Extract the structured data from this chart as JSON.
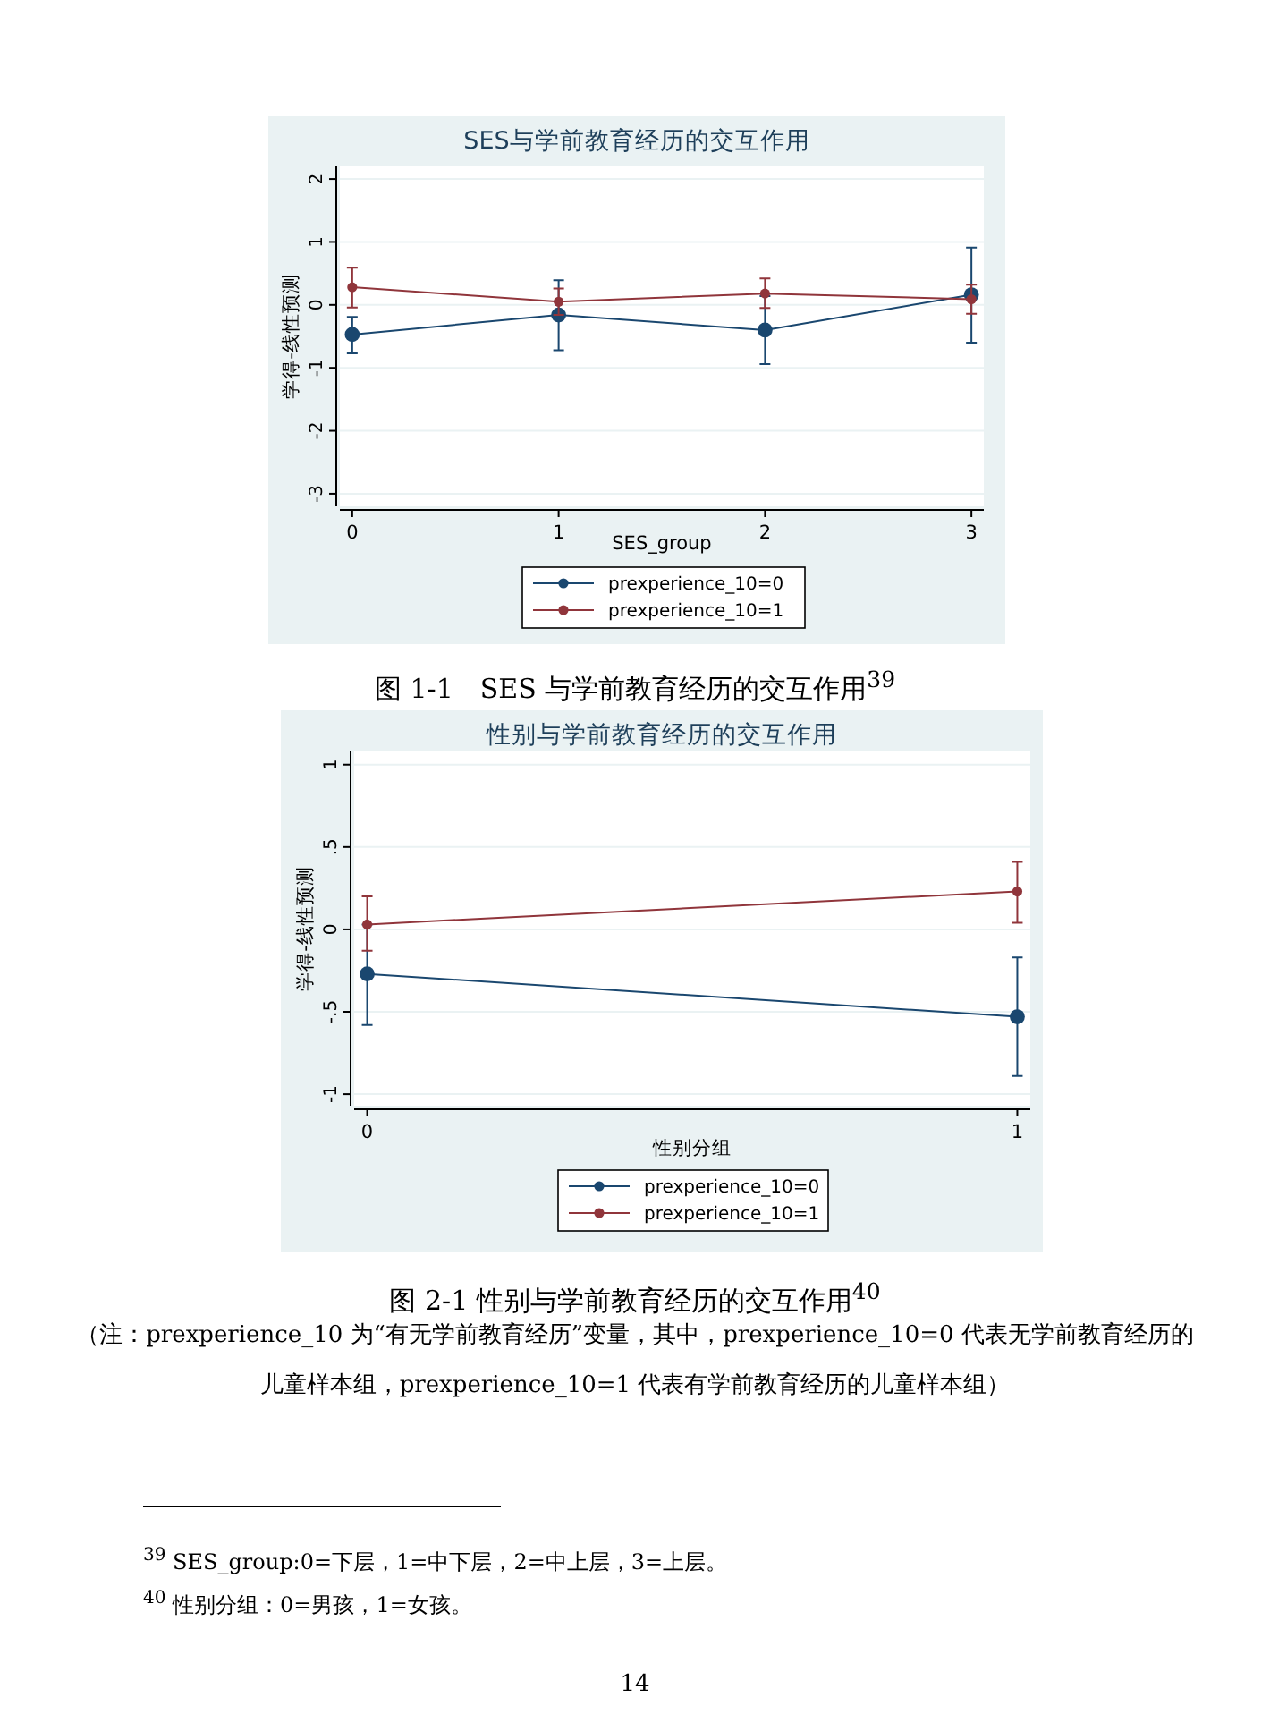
{
  "chart_data": [
    {
      "type": "line",
      "title": "SES与学前教育经历的交互作用",
      "xlabel": "SES_group",
      "ylabel": "学得-线性预测",
      "x": [
        0,
        1,
        2,
        3
      ],
      "xlim": [
        -0.06,
        3.06
      ],
      "xticks": [
        0,
        1,
        2,
        3
      ],
      "ylim": [
        -3.2,
        2.2
      ],
      "yticks": [
        2,
        1,
        0,
        -1,
        -2,
        -3
      ],
      "grid": "y",
      "legend": "bottom",
      "marker": "circle",
      "series": [
        {
          "name": "prexperience_10=0",
          "color": "#1a476f",
          "values": [
            -0.47,
            -0.16,
            -0.4,
            0.16
          ],
          "errors": [
            [
              -0.77,
              -0.19
            ],
            [
              -0.72,
              0.39
            ],
            [
              -0.94,
              0.14
            ],
            [
              -0.6,
              0.91
            ]
          ]
        },
        {
          "name": "prexperience_10=1",
          "color": "#90353b",
          "values": [
            0.28,
            0.05,
            0.18,
            0.09
          ],
          "errors": [
            [
              -0.04,
              0.59
            ],
            [
              -0.16,
              0.26
            ],
            [
              -0.05,
              0.42
            ],
            [
              -0.14,
              0.32
            ]
          ]
        }
      ],
      "annotations": [
        "图 1-1　SES 与学前教育经历的交互作用$^{39}$",
        "$^{39}$ SES_group:0=下层，1=中下层，2=中上层，3=上层。"
      ]
    },
    {
      "type": "line",
      "title": "性别与学前教育经历的交互作用",
      "xlabel": "性别分组",
      "ylabel": "学得-线性预测",
      "x": [
        0,
        1
      ],
      "xlim": [
        -0.02,
        1.02
      ],
      "xticks": [
        0,
        1
      ],
      "ylim": [
        -1.07,
        1.08
      ],
      "yticks": [
        1,
        {
          "value": 0.5,
          "label": ".5"
        },
        0,
        {
          "value": -0.5,
          "label": "-.5"
        },
        -1
      ],
      "grid": "y",
      "legend": "bottom",
      "marker": "circle",
      "series": [
        {
          "name": "prexperience_10=0",
          "color": "#1a476f",
          "values": [
            -0.27,
            -0.53
          ],
          "errors": [
            [
              -0.58,
              0.03
            ],
            [
              -0.89,
              -0.17
            ]
          ]
        },
        {
          "name": "prexperience_10=1",
          "color": "#90353b",
          "values": [
            0.03,
            0.23
          ],
          "errors": [
            [
              -0.13,
              0.2
            ],
            [
              0.04,
              0.41
            ]
          ]
        }
      ],
      "annotations": [
        "图 2-1 性别与学前教育经历的交互作用$^{40}$",
        "（注：prexperience_10 为“有无学前教育经历”变量，其中，prexperience_10=0 代表无学前教育经历的儿童样本组，prexperience_10=1 代表有学前教育经历的儿童样本组）",
        "$^{40}$ 性别分组：0=男孩，1=女孩。",
        "14"
      ]
    }
  ]
}
